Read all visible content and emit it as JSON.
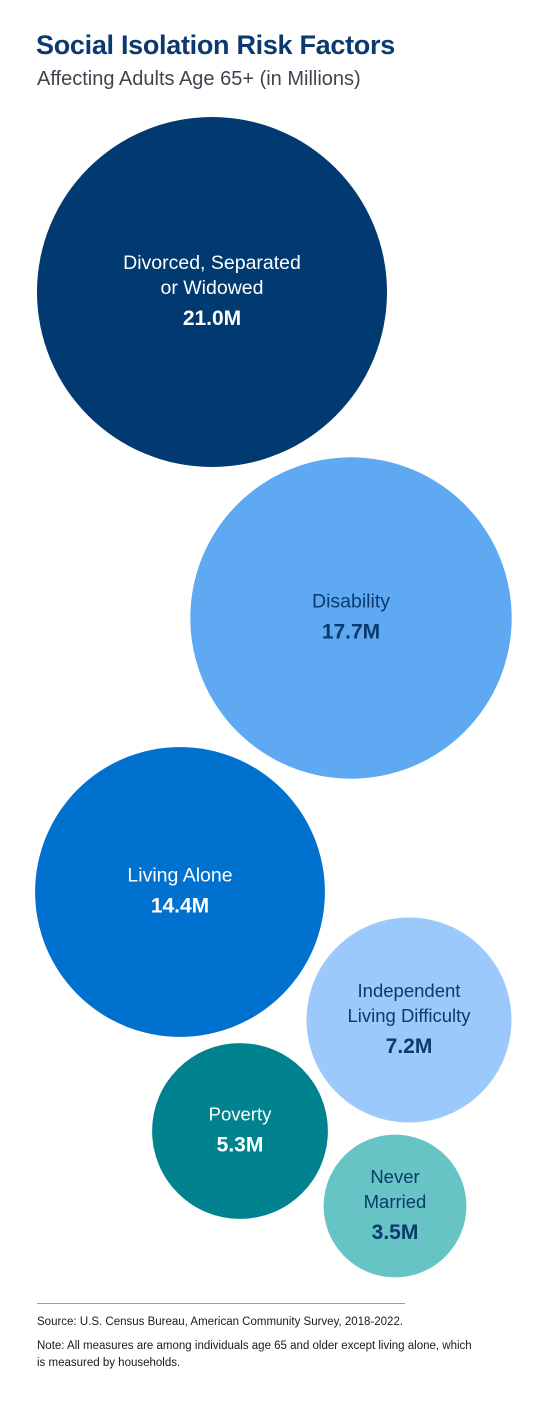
{
  "chart_data": {
    "type": "bubble",
    "title": "Social Isolation Risk Factors",
    "subtitle": "Affecting Adults Age 65+ (in Millions)",
    "unit": "M",
    "items": [
      {
        "label_lines": [
          "Divorced, Separated",
          "or Widowed"
        ],
        "value": 21.0,
        "value_label": "21.0M",
        "color": "#003a70",
        "text_color": "#ffffff"
      },
      {
        "label_lines": [
          "Disability"
        ],
        "value": 17.7,
        "value_label": "17.7M",
        "color": "#5ea9f2",
        "text_color": "#0b3a6e"
      },
      {
        "label_lines": [
          "Living Alone"
        ],
        "value": 14.4,
        "value_label": "14.4M",
        "color": "#0071ce",
        "text_color": "#ffffff"
      },
      {
        "label_lines": [
          "Independent",
          "Living Difficulty"
        ],
        "value": 7.2,
        "value_label": "7.2M",
        "color": "#9bc9fb",
        "text_color": "#0b3a6e"
      },
      {
        "label_lines": [
          "Poverty"
        ],
        "value": 5.3,
        "value_label": "5.3M",
        "color": "#00838f",
        "text_color": "#ffffff"
      },
      {
        "label_lines": [
          "Never",
          "Married"
        ],
        "value": 3.5,
        "value_label": "3.5M",
        "color": "#66c4c4",
        "text_color": "#0b3a6e"
      }
    ]
  },
  "footer": {
    "source": "Source: U.S. Census Bureau, American Community Survey, 2018-2022.",
    "note": "Note: All measures are among individuals age 65 and older except living alone, which is measured by households."
  }
}
